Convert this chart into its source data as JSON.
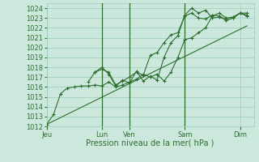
{
  "bg_color": "#cce8dd",
  "grid_color": "#99ccbb",
  "line_color": "#2d6e2d",
  "marker_color": "#2d6e2d",
  "xlabel_text": "Pression niveau de la mer( hPa )",
  "ylim": [
    1012,
    1024.5
  ],
  "yticks": [
    1012,
    1013,
    1014,
    1015,
    1016,
    1017,
    1018,
    1019,
    1020,
    1021,
    1022,
    1023,
    1024
  ],
  "xtick_labels": [
    "Jeu",
    "Lun",
    "Ven",
    "Sam",
    "Dim"
  ],
  "xtick_positions": [
    0,
    2,
    3,
    5,
    7
  ],
  "xlim": [
    0,
    7.5
  ],
  "vline_positions": [
    2,
    3,
    5
  ],
  "series1": {
    "x": [
      0.0,
      0.25,
      0.5,
      0.75,
      1.0,
      1.25,
      1.5,
      1.75,
      2.0,
      2.25,
      2.5,
      2.75,
      3.0,
      3.25,
      3.5,
      3.75,
      4.0,
      4.25,
      4.5,
      4.75,
      5.0,
      5.25,
      5.5,
      5.75,
      6.0,
      6.25,
      6.5,
      6.75,
      7.0,
      7.25
    ],
    "y": [
      1012.2,
      1013.2,
      1015.3,
      1015.9,
      1016.0,
      1016.1,
      1016.1,
      1016.2,
      1016.1,
      1016.5,
      1016.0,
      1016.2,
      1016.5,
      1016.8,
      1017.3,
      1017.0,
      1017.3,
      1016.6,
      1017.5,
      1019.0,
      1020.8,
      1021.0,
      1021.5,
      1022.0,
      1023.2,
      1023.5,
      1023.0,
      1023.1,
      1023.5,
      1023.5
    ]
  },
  "series2": {
    "x": [
      1.5,
      1.75,
      2.0,
      2.25,
      2.5,
      2.75,
      3.0,
      3.25,
      3.5,
      3.75,
      4.0,
      4.25,
      4.5,
      4.75,
      5.0,
      5.25,
      5.5,
      5.75,
      6.0,
      6.25,
      6.5,
      6.75,
      7.0,
      7.25
    ],
    "y": [
      1016.5,
      1017.5,
      1017.8,
      1017.5,
      1016.2,
      1016.6,
      1017.0,
      1017.5,
      1017.2,
      1019.2,
      1019.5,
      1020.5,
      1021.3,
      1021.5,
      1023.2,
      1023.5,
      1023.0,
      1022.9,
      1023.3,
      1023.2,
      1022.8,
      1023.0,
      1023.5,
      1023.3
    ]
  },
  "series3": {
    "x": [
      1.75,
      2.0,
      2.25,
      2.5,
      2.75,
      3.0,
      3.25,
      3.5,
      3.75,
      4.0,
      4.25,
      4.5,
      4.75,
      5.0,
      5.25,
      5.5,
      5.75,
      6.0,
      6.25,
      6.5,
      6.75,
      7.0,
      7.25
    ],
    "y": [
      1017.5,
      1018.0,
      1017.3,
      1016.1,
      1016.7,
      1016.4,
      1017.6,
      1016.6,
      1017.1,
      1016.7,
      1019.0,
      1020.5,
      1021.2,
      1023.3,
      1024.0,
      1023.5,
      1023.8,
      1023.0,
      1023.1,
      1022.8,
      1023.0,
      1023.5,
      1023.2
    ]
  },
  "trend_x": [
    0.0,
    7.25
  ],
  "trend_y": [
    1012.2,
    1022.2
  ]
}
